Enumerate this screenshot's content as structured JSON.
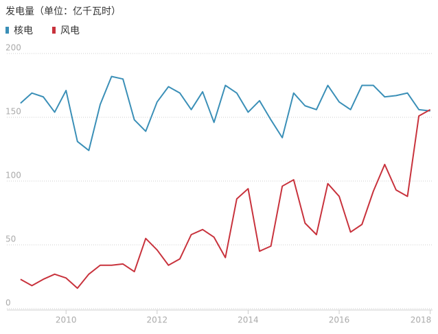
{
  "chart_data": {
    "type": "line",
    "title": "发电量（单位：亿千瓦时）",
    "x": [
      2009,
      2009.25,
      2009.5,
      2009.75,
      2010,
      2010.25,
      2010.5,
      2010.75,
      2011,
      2011.25,
      2011.5,
      2011.75,
      2012,
      2012.25,
      2012.5,
      2012.75,
      2013,
      2013.25,
      2013.5,
      2013.75,
      2014,
      2014.25,
      2014.5,
      2014.75,
      2015,
      2015.25,
      2015.5,
      2015.75,
      2016,
      2016.25,
      2016.5,
      2016.75,
      2017,
      2017.25,
      2017.5,
      2017.75,
      2018
    ],
    "series": [
      {
        "name": "核电",
        "color": "#3a8fb7",
        "values": [
          161,
          169,
          166,
          154,
          171,
          131,
          124,
          160,
          182,
          180,
          148,
          139,
          162,
          174,
          169,
          156,
          170,
          146,
          175,
          169,
          154,
          163,
          148,
          134,
          169,
          159,
          156,
          175,
          162,
          156,
          175,
          175,
          166,
          167,
          169,
          156,
          155
        ]
      },
      {
        "name": "风电",
        "color": "#c8323c",
        "values": [
          23,
          18,
          23,
          27,
          24,
          16,
          27,
          34,
          34,
          35,
          29,
          55,
          46,
          34,
          39,
          58,
          62,
          56,
          40,
          86,
          94,
          45,
          49,
          96,
          101,
          67,
          58,
          98,
          88,
          60,
          66,
          92,
          113,
          93,
          88,
          151,
          156
        ]
      }
    ],
    "xlim": [
      2008.7,
      2018.05
    ],
    "xticks": [
      2010,
      2012,
      2014,
      2016,
      2018
    ],
    "ylim": [
      0,
      200
    ],
    "yticks": [
      0,
      50,
      100,
      150,
      200
    ],
    "grid": true
  }
}
